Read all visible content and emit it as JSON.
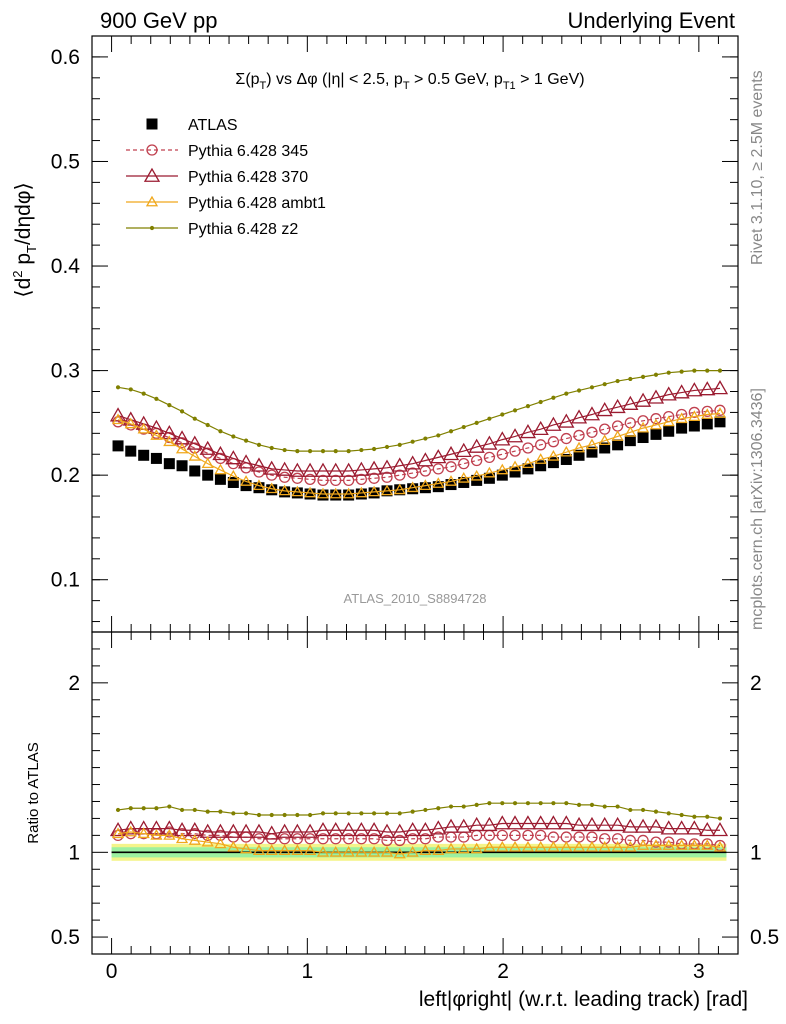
{
  "header": {
    "left": "900 GeV pp",
    "right": "Underlying Event"
  },
  "side_labels": {
    "rivet": "Rivet 3.1.10, ≥ 2.5M events",
    "mcplots": "mcplots.cern.ch [arXiv:1306.3436]"
  },
  "watermark": "ATLAS_2010_S8894728",
  "chart_data": [
    {
      "type": "scatter",
      "panel": "main",
      "title": "Σ(p_T) vs Δφ (|η| < 2.5, p_T > 0.5 GeV, p_T1 > 1 GeV)",
      "ylabel": "⟨d² p_T/dηdφ⟩",
      "xlabel": "left|φright| (w.r.t. leading track) [rad]",
      "xlim": [
        -0.1,
        3.2
      ],
      "ylim": [
        0.05,
        0.62
      ],
      "xticks": [
        "0",
        "1",
        "2",
        "3"
      ],
      "yticks": [
        "0.1",
        "0.2",
        "0.3",
        "0.4",
        "0.5",
        "0.6"
      ],
      "legend_position": "top-left",
      "grid": false,
      "x": [
        0.033,
        0.098,
        0.164,
        0.229,
        0.295,
        0.36,
        0.425,
        0.491,
        0.556,
        0.622,
        0.687,
        0.753,
        0.818,
        0.884,
        0.949,
        1.014,
        1.08,
        1.145,
        1.211,
        1.276,
        1.341,
        1.407,
        1.472,
        1.538,
        1.603,
        1.669,
        1.734,
        1.799,
        1.865,
        1.93,
        1.996,
        2.061,
        2.127,
        2.192,
        2.257,
        2.323,
        2.388,
        2.454,
        2.519,
        2.585,
        2.65,
        2.715,
        2.781,
        2.846,
        2.912,
        2.977,
        3.043,
        3.108
      ],
      "series": [
        {
          "name": "ATLAS",
          "marker": "square",
          "color": "#000000",
          "values": [
            0.228,
            0.223,
            0.219,
            0.216,
            0.211,
            0.209,
            0.204,
            0.2,
            0.196,
            0.193,
            0.19,
            0.188,
            0.186,
            0.184,
            0.183,
            0.182,
            0.181,
            0.181,
            0.181,
            0.182,
            0.183,
            0.185,
            0.186,
            0.187,
            0.188,
            0.189,
            0.191,
            0.193,
            0.195,
            0.197,
            0.2,
            0.203,
            0.206,
            0.209,
            0.212,
            0.215,
            0.219,
            0.222,
            0.226,
            0.229,
            0.233,
            0.236,
            0.239,
            0.242,
            0.245,
            0.247,
            0.249,
            0.251
          ]
        },
        {
          "name": "Pythia 6.428 345",
          "marker": "circle-open",
          "dashed": true,
          "color": "#c0404f",
          "values": [
            0.251,
            0.248,
            0.244,
            0.24,
            0.236,
            0.231,
            0.226,
            0.221,
            0.216,
            0.211,
            0.207,
            0.203,
            0.2,
            0.198,
            0.197,
            0.196,
            0.195,
            0.195,
            0.195,
            0.196,
            0.197,
            0.198,
            0.2,
            0.202,
            0.204,
            0.206,
            0.208,
            0.211,
            0.214,
            0.217,
            0.22,
            0.223,
            0.226,
            0.229,
            0.232,
            0.235,
            0.238,
            0.241,
            0.244,
            0.247,
            0.25,
            0.252,
            0.254,
            0.256,
            0.258,
            0.26,
            0.261,
            0.262
          ]
        },
        {
          "name": "Pythia 6.428 370",
          "marker": "triangle-open",
          "color": "#9b1b30",
          "values": [
            0.257,
            0.253,
            0.249,
            0.245,
            0.24,
            0.235,
            0.23,
            0.225,
            0.22,
            0.216,
            0.212,
            0.209,
            0.206,
            0.205,
            0.204,
            0.204,
            0.204,
            0.204,
            0.204,
            0.205,
            0.206,
            0.207,
            0.209,
            0.211,
            0.214,
            0.217,
            0.22,
            0.223,
            0.227,
            0.23,
            0.234,
            0.237,
            0.241,
            0.244,
            0.248,
            0.251,
            0.255,
            0.258,
            0.262,
            0.265,
            0.268,
            0.271,
            0.274,
            0.277,
            0.279,
            0.281,
            0.282,
            0.283
          ]
        },
        {
          "name": "Pythia 6.428 ambt1",
          "marker": "triangle-open-small",
          "color": "#f0a81c",
          "values": [
            0.253,
            0.249,
            0.244,
            0.238,
            0.232,
            0.225,
            0.218,
            0.211,
            0.205,
            0.199,
            0.194,
            0.19,
            0.187,
            0.185,
            0.184,
            0.183,
            0.182,
            0.182,
            0.182,
            0.183,
            0.184,
            0.185,
            0.186,
            0.188,
            0.19,
            0.192,
            0.194,
            0.197,
            0.199,
            0.202,
            0.205,
            0.208,
            0.211,
            0.215,
            0.218,
            0.222,
            0.226,
            0.229,
            0.233,
            0.237,
            0.241,
            0.245,
            0.248,
            0.251,
            0.254,
            0.256,
            0.258,
            0.259
          ]
        },
        {
          "name": "Pythia 6.428 z2",
          "marker": "dot",
          "color": "#808000",
          "values": [
            0.284,
            0.282,
            0.278,
            0.273,
            0.267,
            0.261,
            0.254,
            0.248,
            0.242,
            0.237,
            0.233,
            0.229,
            0.226,
            0.224,
            0.223,
            0.223,
            0.223,
            0.223,
            0.223,
            0.224,
            0.225,
            0.227,
            0.229,
            0.232,
            0.235,
            0.238,
            0.242,
            0.246,
            0.25,
            0.254,
            0.258,
            0.262,
            0.266,
            0.27,
            0.274,
            0.278,
            0.281,
            0.284,
            0.287,
            0.29,
            0.292,
            0.294,
            0.296,
            0.298,
            0.299,
            0.3,
            0.3,
            0.3
          ]
        }
      ]
    },
    {
      "type": "scatter",
      "panel": "ratio",
      "ylabel": "Ratio to ATLAS",
      "xlabel": "left|φright| (w.r.t. leading track) [rad]",
      "xlim": [
        -0.1,
        3.2
      ],
      "ylim": [
        0.4,
        2.3
      ],
      "xticks": [
        "0",
        "1",
        "2",
        "3"
      ],
      "yticks": [
        "0.5",
        "1",
        "2"
      ],
      "reference_band": {
        "inner": [
          0.97,
          1.03
        ],
        "outer": [
          0.95,
          1.05
        ]
      },
      "series": [
        {
          "name": "Pythia 6.428 345",
          "color": "#c0404f",
          "values": [
            1.1,
            1.11,
            1.11,
            1.11,
            1.12,
            1.11,
            1.11,
            1.1,
            1.1,
            1.09,
            1.09,
            1.08,
            1.08,
            1.08,
            1.08,
            1.08,
            1.08,
            1.08,
            1.08,
            1.08,
            1.08,
            1.07,
            1.07,
            1.08,
            1.08,
            1.09,
            1.09,
            1.09,
            1.1,
            1.1,
            1.1,
            1.1,
            1.1,
            1.1,
            1.09,
            1.09,
            1.09,
            1.09,
            1.08,
            1.08,
            1.07,
            1.07,
            1.06,
            1.06,
            1.05,
            1.05,
            1.05,
            1.04
          ]
        },
        {
          "name": "Pythia 6.428 370",
          "color": "#9b1b30",
          "values": [
            1.13,
            1.14,
            1.14,
            1.14,
            1.14,
            1.13,
            1.13,
            1.12,
            1.12,
            1.12,
            1.12,
            1.12,
            1.11,
            1.12,
            1.12,
            1.12,
            1.13,
            1.13,
            1.13,
            1.13,
            1.13,
            1.12,
            1.12,
            1.13,
            1.13,
            1.14,
            1.15,
            1.15,
            1.16,
            1.16,
            1.17,
            1.17,
            1.17,
            1.17,
            1.17,
            1.17,
            1.16,
            1.16,
            1.16,
            1.16,
            1.15,
            1.15,
            1.15,
            1.14,
            1.14,
            1.14,
            1.13,
            1.13
          ]
        },
        {
          "name": "Pythia 6.428 ambt1",
          "color": "#f0a81c",
          "values": [
            1.11,
            1.12,
            1.11,
            1.1,
            1.1,
            1.08,
            1.07,
            1.06,
            1.05,
            1.03,
            1.02,
            1.01,
            1.01,
            1.01,
            1.01,
            1.01,
            1.0,
            1.0,
            1.0,
            1.0,
            1.0,
            1.0,
            0.99,
            1.0,
            1.01,
            1.01,
            1.02,
            1.02,
            1.02,
            1.03,
            1.03,
            1.03,
            1.03,
            1.03,
            1.03,
            1.03,
            1.03,
            1.03,
            1.03,
            1.03,
            1.03,
            1.04,
            1.04,
            1.04,
            1.04,
            1.04,
            1.04,
            1.03
          ]
        },
        {
          "name": "Pythia 6.428 z2",
          "color": "#808000",
          "values": [
            1.25,
            1.26,
            1.26,
            1.26,
            1.27,
            1.25,
            1.25,
            1.24,
            1.24,
            1.23,
            1.23,
            1.22,
            1.22,
            1.22,
            1.22,
            1.22,
            1.23,
            1.23,
            1.23,
            1.23,
            1.23,
            1.23,
            1.23,
            1.24,
            1.25,
            1.26,
            1.27,
            1.27,
            1.28,
            1.29,
            1.29,
            1.29,
            1.29,
            1.29,
            1.29,
            1.29,
            1.28,
            1.28,
            1.27,
            1.27,
            1.25,
            1.25,
            1.24,
            1.23,
            1.22,
            1.21,
            1.21,
            1.2
          ]
        }
      ]
    }
  ]
}
